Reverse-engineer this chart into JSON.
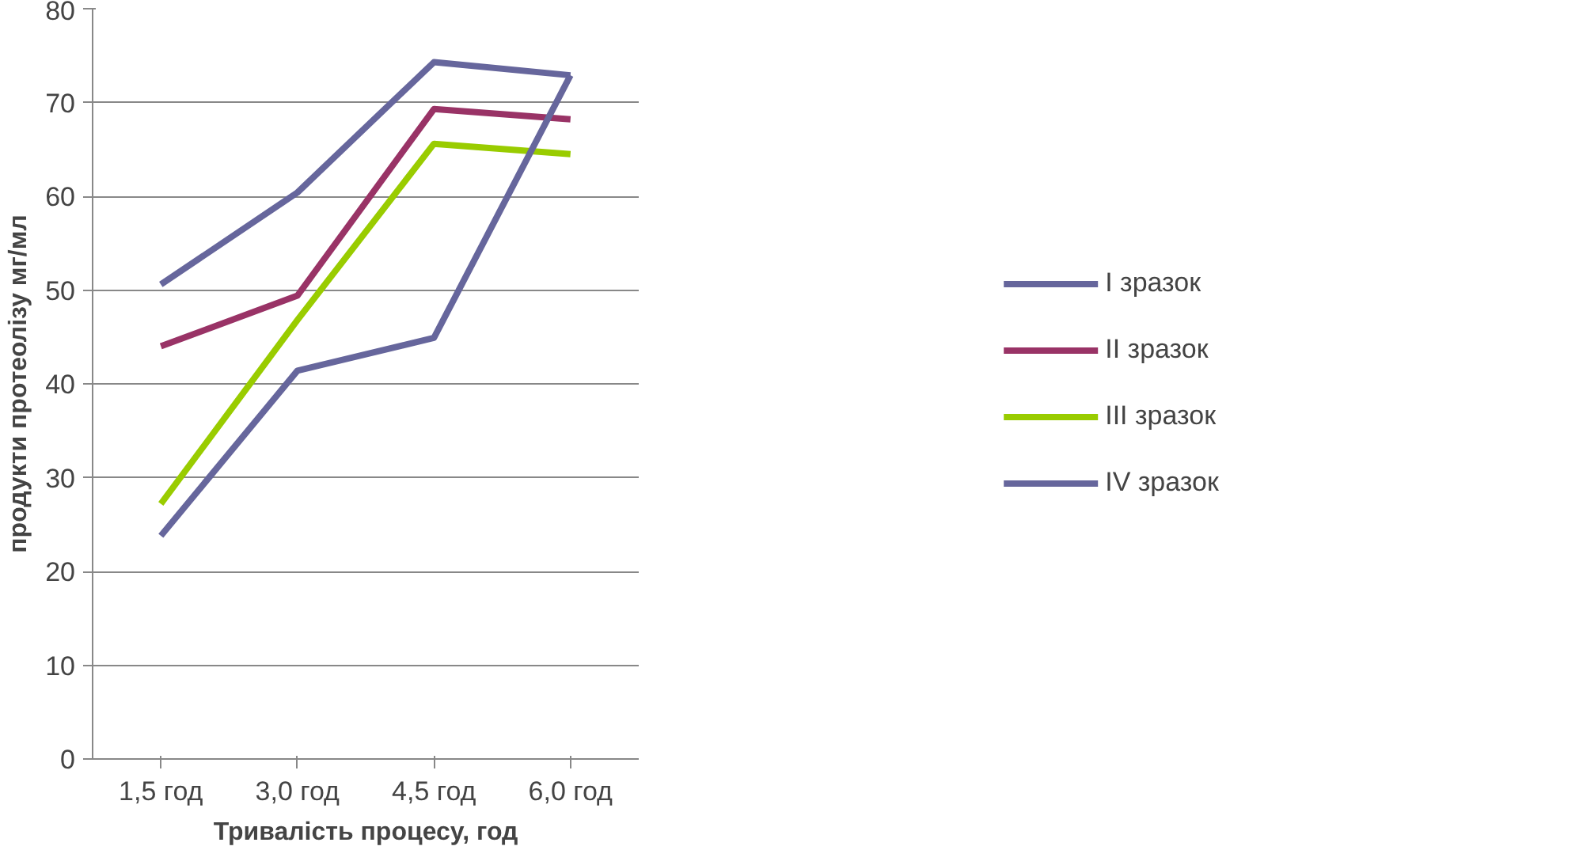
{
  "chart_data": {
    "type": "line",
    "xlabel": "Тривалість процесу, год",
    "ylabel": "продукти протеолізу мг/мл",
    "categories": [
      "1,5 год",
      "3,0 год",
      "4,5 год",
      "6,0 год"
    ],
    "series": [
      {
        "name": "I зразок",
        "color": "#66669c",
        "values": [
          50.6,
          60.4,
          74.3,
          72.9
        ]
      },
      {
        "name": "II зразок",
        "color": "#993366",
        "values": [
          44.0,
          49.4,
          69.3,
          68.2
        ]
      },
      {
        "name": "III зразок",
        "color": "#99cc00",
        "values": [
          27.2,
          46.8,
          65.6,
          64.5
        ]
      },
      {
        "name": "IV зразок",
        "color": "#66669c",
        "values": [
          23.8,
          41.4,
          44.9,
          72.9
        ]
      }
    ],
    "ylim": [
      0,
      80
    ],
    "yticks": [
      0,
      10,
      20,
      30,
      40,
      50,
      60,
      70,
      80
    ],
    "grid": "y",
    "legend": "right",
    "marker": "none",
    "line_style": "solid"
  }
}
